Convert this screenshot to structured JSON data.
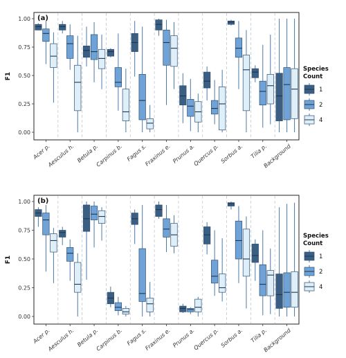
{
  "colors": {
    "1": "#3b5f83",
    "2": "#6fa3d8",
    "4": "#deeff9",
    "stroke": "#2f4f6f"
  },
  "chart_data": [
    {
      "type": "boxplot",
      "panel_label": "(a)",
      "ylabel": "F1",
      "ylim": [
        0,
        1
      ],
      "yticks": [
        "0.00",
        "0.25",
        "0.50",
        "0.75",
        "1.00"
      ],
      "categories": [
        "Acer p.",
        "Aesculus h.",
        "Betula p.",
        "Carpinus b.",
        "Fagus s.",
        "Fraxinus e.",
        "Prunus a.",
        "Quercus p.",
        "Sorbus a.",
        "Tilia p.",
        "Background"
      ],
      "series": [
        {
          "name": "1",
          "boxes": [
            {
              "min": 0.9,
              "q1": 0.9,
              "med": 0.93,
              "q3": 0.95,
              "max": 0.96
            },
            {
              "min": 0.87,
              "q1": 0.9,
              "med": 0.93,
              "q3": 0.95,
              "max": 0.98
            },
            {
              "min": 0.58,
              "q1": 0.66,
              "med": 0.72,
              "q3": 0.76,
              "max": 0.93
            },
            {
              "min": 0.66,
              "q1": 0.67,
              "med": 0.71,
              "q3": 0.73,
              "max": 0.74
            },
            {
              "min": 0.49,
              "q1": 0.71,
              "med": 0.79,
              "q3": 0.87,
              "max": 0.98
            },
            {
              "min": 0.85,
              "q1": 0.9,
              "med": 0.95,
              "q3": 0.99,
              "max": 1.0
            },
            {
              "min": 0.08,
              "q1": 0.24,
              "med": 0.32,
              "q3": 0.41,
              "max": 0.52
            },
            {
              "min": 0.28,
              "q1": 0.39,
              "med": 0.45,
              "q3": 0.53,
              "max": 0.58
            },
            {
              "min": 0.94,
              "q1": 0.95,
              "med": 0.97,
              "q3": 0.98,
              "max": 0.99
            },
            {
              "min": 0.44,
              "q1": 0.48,
              "med": 0.53,
              "q3": 0.56,
              "max": 0.59
            },
            {
              "min": 0.0,
              "q1": 0.1,
              "med": 0.32,
              "q3": 0.52,
              "max": 1.0
            }
          ]
        },
        {
          "name": "2",
          "boxes": [
            {
              "min": 0.6,
              "q1": 0.8,
              "med": 0.87,
              "q3": 0.91,
              "max": 0.98
            },
            {
              "min": 0.55,
              "q1": 0.65,
              "med": 0.78,
              "q3": 0.85,
              "max": 0.95
            },
            {
              "min": 0.44,
              "q1": 0.64,
              "med": 0.71,
              "q3": 0.86,
              "max": 0.97
            },
            {
              "min": 0.19,
              "q1": 0.4,
              "med": 0.44,
              "q3": 0.57,
              "max": 0.87
            },
            {
              "min": 0.0,
              "q1": 0.11,
              "med": 0.28,
              "q3": 0.51,
              "max": 0.93
            },
            {
              "min": 0.24,
              "q1": 0.59,
              "med": 0.79,
              "q3": 0.9,
              "max": 0.99
            },
            {
              "min": 0.01,
              "q1": 0.14,
              "med": 0.23,
              "q3": 0.29,
              "max": 0.47
            },
            {
              "min": 0.07,
              "q1": 0.16,
              "med": 0.21,
              "q3": 0.28,
              "max": 0.46
            },
            {
              "min": 0.38,
              "q1": 0.66,
              "med": 0.74,
              "q3": 0.83,
              "max": 0.98
            },
            {
              "min": 0.04,
              "q1": 0.24,
              "med": 0.36,
              "q3": 0.45,
              "max": 0.77
            },
            {
              "min": 0.0,
              "q1": 0.11,
              "med": 0.42,
              "q3": 0.57,
              "max": 1.0
            }
          ]
        },
        {
          "name": "4",
          "boxes": [
            {
              "min": 0.26,
              "q1": 0.57,
              "med": 0.67,
              "q3": 0.78,
              "max": 0.88
            },
            {
              "min": 0.0,
              "q1": 0.19,
              "med": 0.44,
              "q3": 0.59,
              "max": 0.85
            },
            {
              "min": 0.38,
              "q1": 0.56,
              "med": 0.65,
              "q3": 0.73,
              "max": 0.86
            },
            {
              "min": 0.0,
              "q1": 0.1,
              "med": 0.18,
              "q3": 0.38,
              "max": 0.56
            },
            {
              "min": 0.0,
              "q1": 0.03,
              "med": 0.08,
              "q3": 0.12,
              "max": 0.24
            },
            {
              "min": 0.38,
              "q1": 0.58,
              "med": 0.74,
              "q3": 0.85,
              "max": 0.97
            },
            {
              "min": 0.0,
              "q1": 0.09,
              "med": 0.18,
              "q3": 0.27,
              "max": 0.34
            },
            {
              "min": 0.0,
              "q1": 0.02,
              "med": 0.25,
              "q3": 0.4,
              "max": 0.55
            },
            {
              "min": 0.0,
              "q1": 0.19,
              "med": 0.55,
              "q3": 0.68,
              "max": 0.9
            },
            {
              "min": 0.07,
              "q1": 0.25,
              "med": 0.41,
              "q3": 0.51,
              "max": 0.86
            },
            {
              "min": 0.0,
              "q1": 0.12,
              "med": 0.38,
              "q3": 0.56,
              "max": 1.0
            }
          ]
        }
      ]
    },
    {
      "type": "boxplot",
      "panel_label": "(b)",
      "ylabel": "F1",
      "ylim": [
        0,
        1
      ],
      "yticks": [
        "0.00",
        "0.25",
        "0.50",
        "0.75",
        "1.00"
      ],
      "categories": [
        "Acer p.",
        "Aesculus h.",
        "Betula p.",
        "Carpinus b.",
        "Fagus s.",
        "Fraxinus e.",
        "Prunus a.",
        "Quercus p.",
        "Sorbus a.",
        "Tilia p.",
        "Background"
      ],
      "series": [
        {
          "name": "1",
          "boxes": [
            {
              "min": 0.78,
              "q1": 0.87,
              "med": 0.9,
              "q3": 0.93,
              "max": 0.95
            },
            {
              "min": 0.62,
              "q1": 0.69,
              "med": 0.73,
              "q3": 0.75,
              "max": 0.78
            },
            {
              "min": 0.32,
              "q1": 0.74,
              "med": 0.85,
              "q3": 0.97,
              "max": 1.0
            },
            {
              "min": 0.08,
              "q1": 0.11,
              "med": 0.16,
              "q3": 0.21,
              "max": 0.26
            },
            {
              "min": 0.63,
              "q1": 0.8,
              "med": 0.85,
              "q3": 0.9,
              "max": 0.93
            },
            {
              "min": 0.85,
              "q1": 0.87,
              "med": 0.93,
              "q3": 0.97,
              "max": 1.0
            },
            {
              "min": 0.03,
              "q1": 0.04,
              "med": 0.07,
              "q3": 0.09,
              "max": 0.11
            },
            {
              "min": 0.54,
              "q1": 0.63,
              "med": 0.71,
              "q3": 0.78,
              "max": 0.82
            },
            {
              "min": 0.93,
              "q1": 0.96,
              "med": 0.98,
              "q3": 0.99,
              "max": 1.0
            },
            {
              "min": 0.31,
              "q1": 0.47,
              "med": 0.53,
              "q3": 0.63,
              "max": 0.67
            },
            {
              "min": 0.0,
              "q1": 0.07,
              "med": 0.19,
              "q3": 0.37,
              "max": 0.95
            }
          ]
        },
        {
          "name": "2",
          "boxes": [
            {
              "min": 0.39,
              "q1": 0.71,
              "med": 0.84,
              "q3": 0.9,
              "max": 0.97
            },
            {
              "min": 0.31,
              "q1": 0.48,
              "med": 0.55,
              "q3": 0.6,
              "max": 0.67
            },
            {
              "min": 0.6,
              "q1": 0.84,
              "med": 0.89,
              "q3": 0.96,
              "max": 1.0
            },
            {
              "min": 0.01,
              "q1": 0.05,
              "med": 0.08,
              "q3": 0.12,
              "max": 0.17
            },
            {
              "min": 0.0,
              "q1": 0.13,
              "med": 0.2,
              "q3": 0.59,
              "max": 0.97
            },
            {
              "min": 0.56,
              "q1": 0.69,
              "med": 0.76,
              "q3": 0.85,
              "max": 0.97
            },
            {
              "min": 0.02,
              "q1": 0.04,
              "med": 0.06,
              "q3": 0.07,
              "max": 0.08
            },
            {
              "min": 0.18,
              "q1": 0.29,
              "med": 0.35,
              "q3": 0.49,
              "max": 0.75
            },
            {
              "min": 0.29,
              "q1": 0.5,
              "med": 0.66,
              "q3": 0.83,
              "max": 0.96
            },
            {
              "min": 0.01,
              "q1": 0.18,
              "med": 0.28,
              "q3": 0.45,
              "max": 0.75
            },
            {
              "min": 0.0,
              "q1": 0.08,
              "med": 0.21,
              "q3": 0.38,
              "max": 0.98
            }
          ]
        },
        {
          "name": "4",
          "boxes": [
            {
              "min": 0.29,
              "q1": 0.56,
              "med": 0.66,
              "q3": 0.72,
              "max": 0.77
            },
            {
              "min": 0.0,
              "q1": 0.21,
              "med": 0.28,
              "q3": 0.47,
              "max": 0.55
            },
            {
              "min": 0.66,
              "q1": 0.81,
              "med": 0.87,
              "q3": 0.92,
              "max": 0.95
            },
            {
              "min": 0.0,
              "q1": 0.02,
              "med": 0.04,
              "q3": 0.07,
              "max": 0.09
            },
            {
              "min": 0.0,
              "q1": 0.04,
              "med": 0.11,
              "q3": 0.16,
              "max": 0.3
            },
            {
              "min": 0.55,
              "q1": 0.61,
              "med": 0.71,
              "q3": 0.81,
              "max": 0.88
            },
            {
              "min": 0.0,
              "q1": 0.04,
              "med": 0.08,
              "q3": 0.15,
              "max": 0.17
            },
            {
              "min": 0.13,
              "q1": 0.21,
              "med": 0.25,
              "q3": 0.37,
              "max": 0.68
            },
            {
              "min": 0.07,
              "q1": 0.35,
              "med": 0.5,
              "q3": 0.76,
              "max": 0.87
            },
            {
              "min": 0.02,
              "q1": 0.18,
              "med": 0.36,
              "q3": 0.4,
              "max": 0.59
            },
            {
              "min": 0.0,
              "q1": 0.08,
              "med": 0.21,
              "q3": 0.39,
              "max": 0.99
            }
          ]
        }
      ]
    }
  ],
  "legend": {
    "title_line1": "Species",
    "title_line2": "Count",
    "items": [
      "1",
      "2",
      "4"
    ]
  }
}
